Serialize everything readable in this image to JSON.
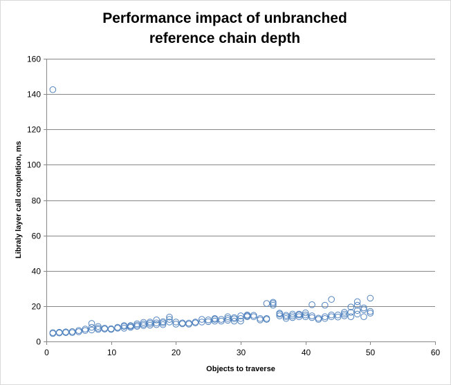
{
  "chart_data": {
    "type": "scatter",
    "title_line1": "Performance impact of unbranched",
    "title_line2": "reference chain depth",
    "xlabel": "Objects to traverse",
    "ylabel": "Libraly layer call completion, ms",
    "xlim": [
      0,
      60
    ],
    "ylim": [
      0,
      160
    ],
    "x_ticks": [
      0,
      10,
      20,
      30,
      40,
      50,
      60
    ],
    "y_ticks": [
      0,
      20,
      40,
      60,
      80,
      100,
      120,
      140,
      160
    ],
    "grid": "horizontal",
    "legend": "none",
    "marker_color": "#4f81bd",
    "points": [
      [
        1,
        142.5
      ],
      [
        1,
        4.5
      ],
      [
        1,
        5
      ],
      [
        2,
        4.8
      ],
      [
        2,
        5.2
      ],
      [
        3,
        5
      ],
      [
        3,
        5.4
      ],
      [
        4,
        5
      ],
      [
        4,
        5.6
      ],
      [
        5,
        5.5
      ],
      [
        5,
        6.2
      ],
      [
        6,
        6.2
      ],
      [
        6,
        7
      ],
      [
        7,
        6.5
      ],
      [
        7,
        8
      ],
      [
        7,
        10.2
      ],
      [
        8,
        6.8
      ],
      [
        8,
        7.5
      ],
      [
        8,
        8.5
      ],
      [
        9,
        7
      ],
      [
        9,
        7.5
      ],
      [
        10,
        6.8
      ],
      [
        10,
        7.2
      ],
      [
        11,
        7.5
      ],
      [
        11,
        8
      ],
      [
        12,
        7.5
      ],
      [
        12,
        8.5
      ],
      [
        12,
        9
      ],
      [
        13,
        8
      ],
      [
        13,
        8.6
      ],
      [
        13,
        9
      ],
      [
        14,
        8.5
      ],
      [
        14,
        9.2
      ],
      [
        14,
        10
      ],
      [
        15,
        9
      ],
      [
        15,
        9.8
      ],
      [
        15,
        10.8
      ],
      [
        16,
        9.2
      ],
      [
        16,
        10.2
      ],
      [
        16,
        11
      ],
      [
        17,
        9.5
      ],
      [
        17,
        10.5
      ],
      [
        17,
        12.2
      ],
      [
        18,
        9.5
      ],
      [
        18,
        10.5
      ],
      [
        18,
        11.2
      ],
      [
        19,
        11
      ],
      [
        19,
        12.5
      ],
      [
        19,
        13.8
      ],
      [
        20,
        9.8
      ],
      [
        20,
        11
      ],
      [
        21,
        10
      ],
      [
        21,
        10.5
      ],
      [
        22,
        9.8
      ],
      [
        22,
        10.4
      ],
      [
        23,
        10.5
      ],
      [
        23,
        11
      ],
      [
        24,
        11
      ],
      [
        24,
        12.5
      ],
      [
        25,
        11.2
      ],
      [
        25,
        12.2
      ],
      [
        26,
        11.5
      ],
      [
        26,
        12.5
      ],
      [
        26,
        13
      ],
      [
        27,
        11.5
      ],
      [
        27,
        12.5
      ],
      [
        28,
        12
      ],
      [
        28,
        13
      ],
      [
        28,
        14
      ],
      [
        29,
        11.5
      ],
      [
        29,
        12.8
      ],
      [
        29,
        13.5
      ],
      [
        30,
        11.5
      ],
      [
        30,
        13
      ],
      [
        30,
        14.5
      ],
      [
        31,
        14
      ],
      [
        31,
        14.5
      ],
      [
        31,
        15
      ],
      [
        32,
        14
      ],
      [
        32,
        14.8
      ],
      [
        33,
        12.2
      ],
      [
        33,
        13
      ],
      [
        34,
        12.5
      ],
      [
        34,
        13
      ],
      [
        34,
        21.5
      ],
      [
        35,
        20.5
      ],
      [
        35,
        21.5
      ],
      [
        35,
        22.2
      ],
      [
        36,
        14.5
      ],
      [
        36,
        15.5
      ],
      [
        36,
        16
      ],
      [
        37,
        13
      ],
      [
        37,
        14
      ],
      [
        37,
        14.8
      ],
      [
        38,
        13.5
      ],
      [
        38,
        14.5
      ],
      [
        38,
        15.5
      ],
      [
        39,
        14
      ],
      [
        39,
        15
      ],
      [
        39,
        15.5
      ],
      [
        40,
        14
      ],
      [
        40,
        15
      ],
      [
        40,
        16.2
      ],
      [
        41,
        13.5
      ],
      [
        41,
        14.5
      ],
      [
        41,
        20.8
      ],
      [
        42,
        12.5
      ],
      [
        42,
        13.2
      ],
      [
        43,
        13
      ],
      [
        43,
        14
      ],
      [
        43,
        20.5
      ],
      [
        44,
        14
      ],
      [
        44,
        15
      ],
      [
        44,
        23.8
      ],
      [
        45,
        13.8
      ],
      [
        45,
        15
      ],
      [
        46,
        14.5
      ],
      [
        46,
        15.5
      ],
      [
        46,
        16.5
      ],
      [
        47,
        14
      ],
      [
        47,
        16.5
      ],
      [
        47,
        19.5
      ],
      [
        48,
        15.5
      ],
      [
        48,
        17.5
      ],
      [
        48,
        20.5
      ],
      [
        48,
        22.5
      ],
      [
        49,
        14
      ],
      [
        49,
        18
      ],
      [
        49,
        19
      ],
      [
        50,
        16
      ],
      [
        50,
        17
      ],
      [
        50,
        24.5
      ]
    ]
  }
}
